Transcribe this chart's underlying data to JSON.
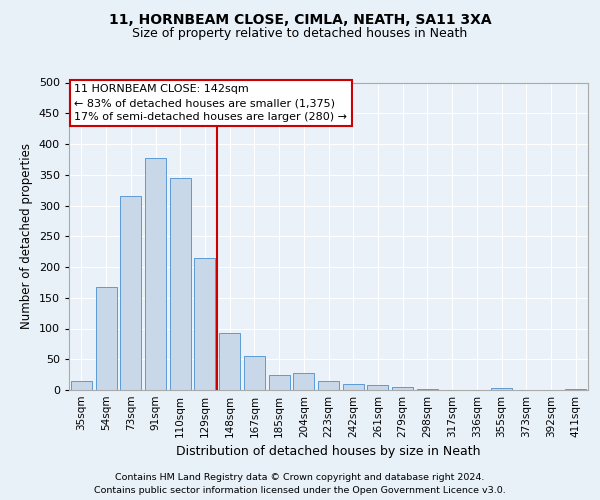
{
  "title1": "11, HORNBEAM CLOSE, CIMLA, NEATH, SA11 3XA",
  "title2": "Size of property relative to detached houses in Neath",
  "xlabel": "Distribution of detached houses by size in Neath",
  "ylabel": "Number of detached properties",
  "categories": [
    "35sqm",
    "54sqm",
    "73sqm",
    "91sqm",
    "110sqm",
    "129sqm",
    "148sqm",
    "167sqm",
    "185sqm",
    "204sqm",
    "223sqm",
    "242sqm",
    "261sqm",
    "279sqm",
    "298sqm",
    "317sqm",
    "336sqm",
    "355sqm",
    "373sqm",
    "392sqm",
    "411sqm"
  ],
  "values": [
    15,
    167,
    315,
    378,
    345,
    215,
    93,
    55,
    25,
    28,
    15,
    10,
    8,
    5,
    1,
    0,
    0,
    3,
    0,
    0,
    2
  ],
  "bar_color": "#c8d8e8",
  "bar_edgecolor": "#5b9bd5",
  "vline_x_index": 6,
  "vline_color": "#cc0000",
  "annotation_text": "11 HORNBEAM CLOSE: 142sqm\n← 83% of detached houses are smaller (1,375)\n17% of semi-detached houses are larger (280) →",
  "annotation_box_color": "#ffffff",
  "annotation_box_edgecolor": "#cc0000",
  "ylim": [
    0,
    500
  ],
  "yticks": [
    0,
    50,
    100,
    150,
    200,
    250,
    300,
    350,
    400,
    450,
    500
  ],
  "footer1": "Contains HM Land Registry data © Crown copyright and database right 2024.",
  "footer2": "Contains public sector information licensed under the Open Government Licence v3.0.",
  "bg_color": "#e8f0f8",
  "plot_bg_color": "#eaf1f8"
}
